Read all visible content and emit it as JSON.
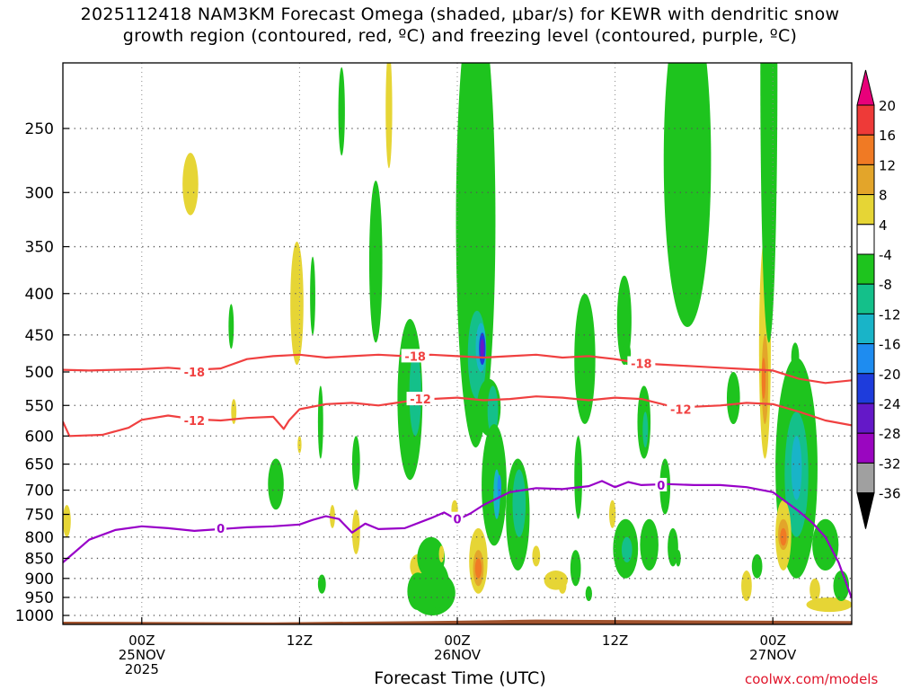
{
  "title": {
    "line1": "2025112418 NAM3KM Forecast Omega (shaded, μbar/s) for KEWR with dendritic snow",
    "line2": "growth region (contoured, red, ºC) and freezing level (contoured, purple, ºC)"
  },
  "credit": "coolwx.com/models",
  "colors": {
    "dgz_contour": "#f04040",
    "freezing_contour": "#9800c8",
    "ground": "#a0522d",
    "frame": "#000000",
    "grid": "#555555"
  },
  "chart_data": {
    "type": "time-height cross section (filled contour)",
    "title": "2025112418 NAM3KM Forecast Omega (shaded, μbar/s) for KEWR with dendritic snow growth region (contoured, red, ºC) and freezing level (contoured, purple, ºC)",
    "xlabel": "Forecast Time (UTC)",
    "ylabel": "",
    "x_range_hours": [
      -6,
      54
    ],
    "x_ticks": [
      {
        "hour": 0,
        "label1": "00Z",
        "label2": "25NOV",
        "label3": "2025"
      },
      {
        "hour": 12,
        "label1": "12Z",
        "label2": "",
        "label3": ""
      },
      {
        "hour": 24,
        "label1": "00Z",
        "label2": "26NOV",
        "label3": ""
      },
      {
        "hour": 36,
        "label1": "12Z",
        "label2": "",
        "label3": ""
      },
      {
        "hour": 48,
        "label1": "00Z",
        "label2": "27NOV",
        "label3": ""
      }
    ],
    "y_axis": "pressure (hPa), log scale",
    "y_range_hpa": [
      1040,
      200
    ],
    "y_ticks": [
      250,
      300,
      350,
      400,
      450,
      500,
      550,
      600,
      650,
      700,
      750,
      800,
      850,
      900,
      950,
      1000
    ],
    "grid": true,
    "colorbar": {
      "units": "μbar/s",
      "labels": [
        "20",
        "16",
        "12",
        "8",
        "4",
        "-4",
        "-8",
        "-12",
        "-16",
        "-20",
        "-24",
        "-28",
        "-32",
        "-36"
      ],
      "levels": [
        {
          "from": 20,
          "to": 24,
          "color": "#e8007a"
        },
        {
          "from": 16,
          "to": 20,
          "color": "#ee3a38"
        },
        {
          "from": 12,
          "to": 16,
          "color": "#f07a24"
        },
        {
          "from": 8,
          "to": 12,
          "color": "#e3a52a"
        },
        {
          "from": 4,
          "to": 8,
          "color": "#e6d535"
        },
        {
          "from": -4,
          "to": 4,
          "color": "#ffffff"
        },
        {
          "from": -8,
          "to": -4,
          "color": "#1ec41e"
        },
        {
          "from": -12,
          "to": -8,
          "color": "#14c08a"
        },
        {
          "from": -16,
          "to": -12,
          "color": "#19b4c8"
        },
        {
          "from": -20,
          "to": -16,
          "color": "#1e8cf0"
        },
        {
          "from": -24,
          "to": -20,
          "color": "#1e3cdc"
        },
        {
          "from": -28,
          "to": -24,
          "color": "#6418c8"
        },
        {
          "from": -32,
          "to": -28,
          "color": "#9a06c0"
        },
        {
          "from": -36,
          "to": -32,
          "color": "#a0a0a0"
        },
        {
          "from": -40,
          "to": -36,
          "color": "#000000"
        }
      ]
    },
    "contours": [
      {
        "name": "-18",
        "color": "#f04040",
        "labels": [
          {
            "text": "-18",
            "hour": 4.0,
            "p": 500
          },
          {
            "text": "-18",
            "hour": 20.8,
            "p": 478
          },
          {
            "text": "-18",
            "hour": 38.0,
            "p": 488
          }
        ],
        "points": [
          [
            -6,
            497
          ],
          [
            -4,
            498
          ],
          [
            -2,
            497
          ],
          [
            0,
            496
          ],
          [
            2,
            494
          ],
          [
            4,
            497
          ],
          [
            6,
            495
          ],
          [
            8,
            482
          ],
          [
            10,
            478
          ],
          [
            12,
            476
          ],
          [
            14,
            480
          ],
          [
            16,
            478
          ],
          [
            18,
            476
          ],
          [
            20,
            478
          ],
          [
            22,
            476
          ],
          [
            24,
            478
          ],
          [
            26,
            480
          ],
          [
            28,
            478
          ],
          [
            30,
            476
          ],
          [
            32,
            480
          ],
          [
            34,
            478
          ],
          [
            36,
            482
          ],
          [
            38,
            488
          ],
          [
            40,
            490
          ],
          [
            42,
            492
          ],
          [
            44,
            494
          ],
          [
            46,
            496
          ],
          [
            48,
            498
          ],
          [
            50,
            510
          ],
          [
            52,
            516
          ],
          [
            54,
            512
          ]
        ]
      },
      {
        "name": "-12",
        "color": "#f04040",
        "labels": [
          {
            "text": "-12",
            "hour": 4.0,
            "p": 574
          },
          {
            "text": "-12",
            "hour": 21.2,
            "p": 540
          },
          {
            "text": "-12",
            "hour": 41.0,
            "p": 556
          }
        ],
        "points": [
          [
            -6,
            576
          ],
          [
            -5.5,
            600
          ],
          [
            -3,
            598
          ],
          [
            -1,
            586
          ],
          [
            0,
            573
          ],
          [
            2,
            566
          ],
          [
            4,
            572
          ],
          [
            6,
            574
          ],
          [
            8,
            570
          ],
          [
            10,
            568
          ],
          [
            10.8,
            588
          ],
          [
            11.2,
            574
          ],
          [
            12,
            556
          ],
          [
            14,
            548
          ],
          [
            16,
            546
          ],
          [
            18,
            550
          ],
          [
            20,
            544
          ],
          [
            22,
            540
          ],
          [
            24,
            538
          ],
          [
            26,
            542
          ],
          [
            28,
            540
          ],
          [
            30,
            536
          ],
          [
            32,
            538
          ],
          [
            34,
            542
          ],
          [
            36,
            538
          ],
          [
            38,
            540
          ],
          [
            40,
            550
          ],
          [
            42,
            552
          ],
          [
            44,
            550
          ],
          [
            46,
            546
          ],
          [
            48,
            548
          ],
          [
            50,
            560
          ],
          [
            52,
            574
          ],
          [
            54,
            582
          ]
        ]
      },
      {
        "name": "0",
        "color": "#9800c8",
        "labels": [
          {
            "text": "0",
            "hour": 6.0,
            "p": 780
          },
          {
            "text": "0",
            "hour": 24.0,
            "p": 760
          },
          {
            "text": "0",
            "hour": 39.5,
            "p": 690
          }
        ],
        "points": [
          [
            -6,
            860
          ],
          [
            -4,
            806
          ],
          [
            -2,
            784
          ],
          [
            0,
            776
          ],
          [
            2,
            780
          ],
          [
            4,
            786
          ],
          [
            6,
            782
          ],
          [
            8,
            778
          ],
          [
            10,
            776
          ],
          [
            12,
            772
          ],
          [
            13,
            762
          ],
          [
            14,
            754
          ],
          [
            15,
            760
          ],
          [
            16,
            790
          ],
          [
            17,
            770
          ],
          [
            18,
            782
          ],
          [
            20,
            780
          ],
          [
            22,
            758
          ],
          [
            23,
            746
          ],
          [
            24,
            762
          ],
          [
            25,
            748
          ],
          [
            26,
            730
          ],
          [
            28,
            704
          ],
          [
            30,
            696
          ],
          [
            32,
            698
          ],
          [
            34,
            692
          ],
          [
            35,
            682
          ],
          [
            36,
            694
          ],
          [
            37,
            684
          ],
          [
            38,
            690
          ],
          [
            40,
            688
          ],
          [
            42,
            690
          ],
          [
            44,
            690
          ],
          [
            46,
            694
          ],
          [
            48,
            704
          ],
          [
            50,
            744
          ],
          [
            51,
            768
          ],
          [
            52,
            800
          ],
          [
            53,
            860
          ],
          [
            54,
            952
          ]
        ]
      }
    ]
  }
}
